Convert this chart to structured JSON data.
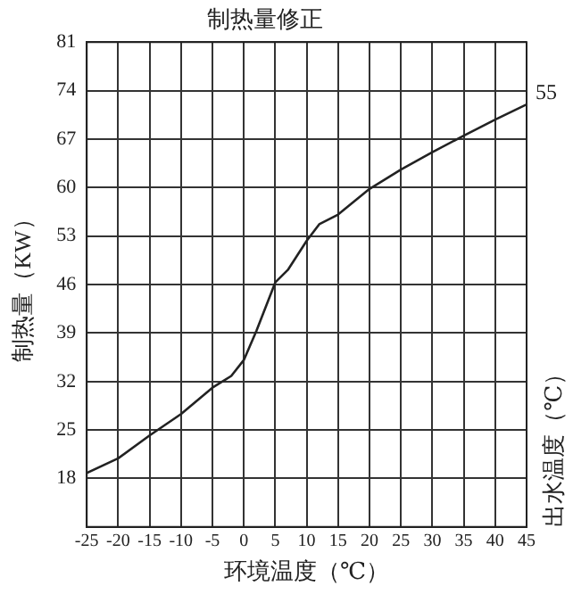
{
  "chart_data": {
    "type": "line",
    "title": "制热量修正",
    "xlabel": "环境温度（℃）",
    "ylabel": "制热量（KW）",
    "y2label": "出水温度（℃）",
    "x": [
      -25,
      -20,
      -15,
      -10,
      -5,
      -2,
      0,
      2,
      5,
      7,
      10,
      12,
      15,
      20,
      25,
      30,
      35,
      40,
      45
    ],
    "series": [
      {
        "color": "#222222",
        "values": [
          18.8,
          20.9,
          24.2,
          27.3,
          31.1,
          32.8,
          35.1,
          39.3,
          46.3,
          48.1,
          52.3,
          54.7,
          56.1,
          59.8,
          62.6,
          65.1,
          67.5,
          69.8,
          72.0
        ]
      }
    ],
    "annotations": [
      {
        "text": "55",
        "x": 45,
        "y": 72
      }
    ],
    "xlim": [
      -25,
      45
    ],
    "xticks": [
      -25,
      -20,
      -15,
      -10,
      -5,
      0,
      5,
      10,
      15,
      20,
      25,
      30,
      35,
      40,
      45
    ],
    "ylim": [
      11,
      81
    ],
    "yticks": [
      18,
      25,
      32,
      39,
      46,
      53,
      60,
      67,
      74,
      81
    ],
    "grid": true,
    "legend": false,
    "marker": "none",
    "line_style": "solid"
  }
}
